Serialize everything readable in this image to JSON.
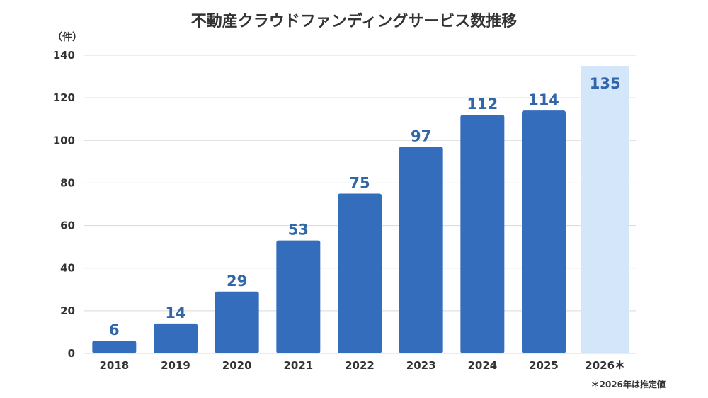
{
  "chart_data": {
    "type": "bar",
    "title": "不動産クラウドファンディングサービス数推移",
    "ylabel": "（件）",
    "categories": [
      "2018",
      "2019",
      "2020",
      "2021",
      "2022",
      "2023",
      "2024",
      "2025",
      "2026＊"
    ],
    "values": [
      6,
      14,
      29,
      53,
      75,
      97,
      112,
      114,
      135
    ],
    "estimated": [
      false,
      false,
      false,
      false,
      false,
      false,
      false,
      false,
      true
    ],
    "ylim": [
      0,
      140
    ],
    "yticks": [
      0,
      20,
      40,
      60,
      80,
      100,
      120,
      140
    ],
    "grid": true,
    "note": "＊2026年は推定値",
    "colors": {
      "bar": "#356dbd",
      "bar_estimate": "#d3e6fa",
      "value_label": "#2f67a8",
      "grid": "#d9d9d9",
      "text": "#333333"
    }
  }
}
